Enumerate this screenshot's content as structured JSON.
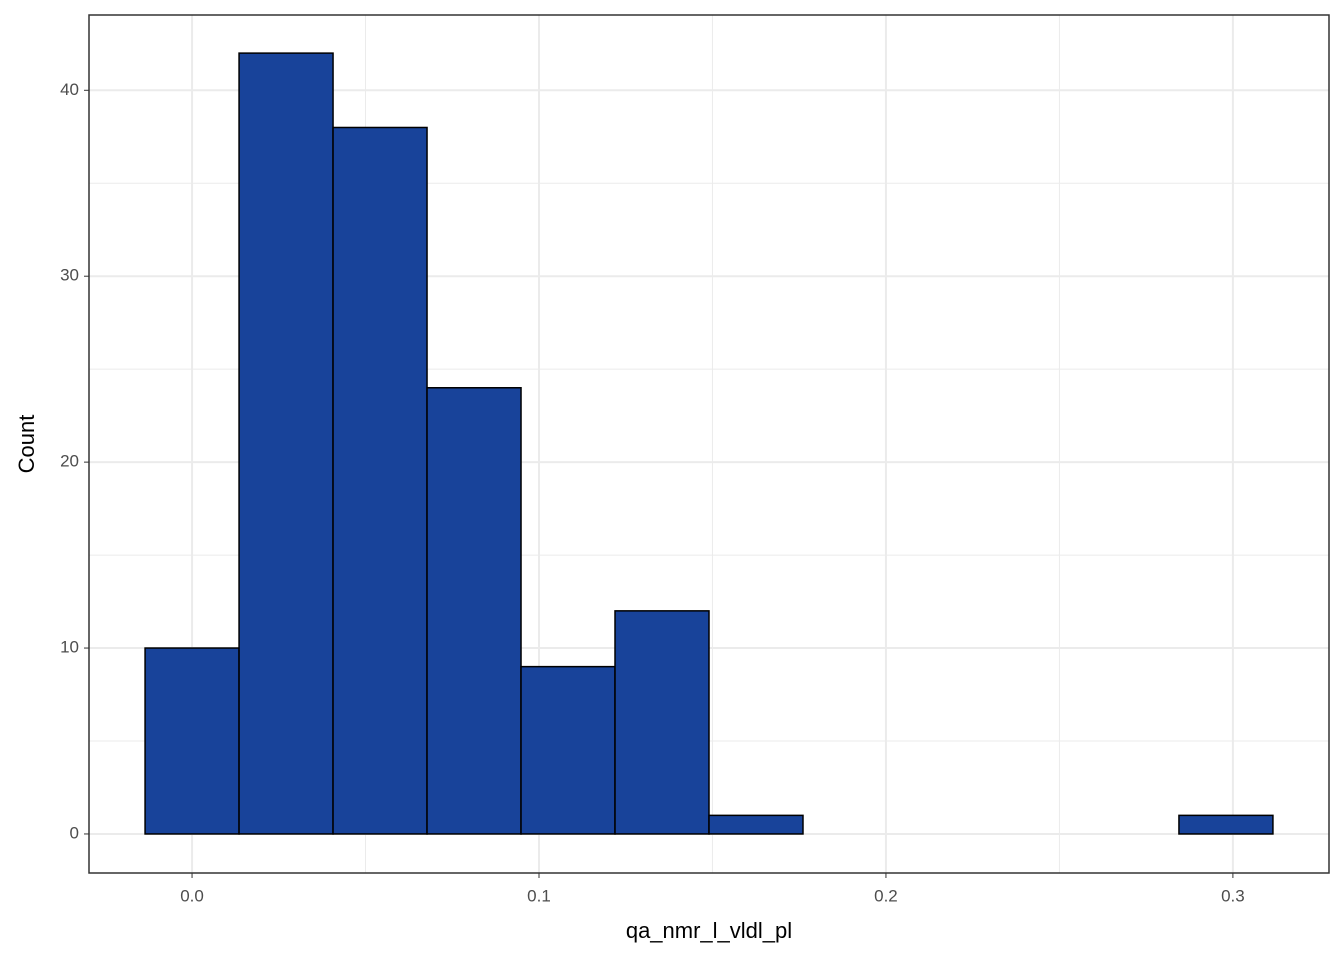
{
  "chart_data": {
    "type": "histogram",
    "x_label": "qa_nmr_l_vldl_pl",
    "y_label": "Count",
    "bins": [
      -0.01354,
      0.01355,
      0.04064,
      0.06773,
      0.09482,
      0.12191,
      0.149,
      0.17609,
      0.20318,
      0.23027,
      0.25736,
      0.28445,
      0.31154
    ],
    "values": [
      10,
      42,
      38,
      24,
      9,
      12,
      1,
      0,
      0,
      0,
      0,
      1
    ],
    "color": "#18439a",
    "edge_color": "#000000",
    "xlim": [
      -0.0297,
      0.3277
    ],
    "ylim": [
      -2.1,
      44.05
    ],
    "xticks": [
      {
        "value": 0,
        "label": "0.0"
      },
      0.1,
      0.2,
      0.3
    ],
    "yticks": [
      0,
      10,
      20,
      30,
      40
    ],
    "grid": true
  }
}
